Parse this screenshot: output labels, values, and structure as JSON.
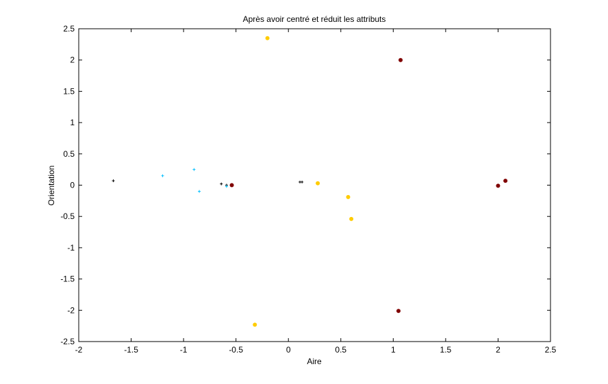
{
  "chart_data": {
    "type": "scatter",
    "title": "Après avoir centré et réduit les attributs",
    "xlabel": "Aire",
    "ylabel": "Orientation",
    "xlim": [
      -2,
      2.5
    ],
    "ylim": [
      -2.5,
      2.5
    ],
    "grid": false,
    "xticks": [
      -2,
      -1.5,
      -1,
      -0.5,
      0,
      0.5,
      1,
      1.5,
      2,
      2.5
    ],
    "xtick_labels": [
      "-2",
      "-1.5",
      "-1",
      "-0.5",
      "0",
      "0.5",
      "1",
      "1.5",
      "2",
      "2.5"
    ],
    "yticks": [
      -2.5,
      -2,
      -1.5,
      -1,
      -0.5,
      0,
      0.5,
      1,
      1.5,
      2,
      2.5
    ],
    "ytick_labels": [
      "-2.5",
      "-2",
      "-1.5",
      "-1",
      "-0.5",
      "0",
      "0.5",
      "1",
      "1.5",
      "2",
      "2.5"
    ],
    "series": [
      {
        "name": "black plus",
        "marker": "plus",
        "color": "#000000",
        "points": [
          [
            -1.67,
            0.07
          ],
          [
            -0.64,
            0.02
          ],
          [
            -0.59,
            0.0
          ],
          [
            0.11,
            0.05
          ],
          [
            0.13,
            0.05
          ]
        ]
      },
      {
        "name": "cyan plus",
        "marker": "plus",
        "color": "#00bfff",
        "points": [
          [
            -1.2,
            0.15
          ],
          [
            -0.9,
            0.25
          ],
          [
            -0.85,
            -0.1
          ],
          [
            -0.59,
            -0.02
          ]
        ]
      },
      {
        "name": "yellow dot",
        "marker": "dot",
        "color": "#ffcc00",
        "points": [
          [
            -0.2,
            2.35
          ],
          [
            0.28,
            0.03
          ],
          [
            0.57,
            -0.19
          ],
          [
            0.6,
            -0.54
          ],
          [
            -0.32,
            -2.23
          ]
        ]
      },
      {
        "name": "dark red dot",
        "marker": "dot",
        "color": "#800000",
        "points": [
          [
            1.07,
            2.0
          ],
          [
            -0.54,
            0.0
          ],
          [
            2.0,
            -0.01
          ],
          [
            2.07,
            0.07
          ],
          [
            1.05,
            -2.01
          ]
        ]
      }
    ]
  }
}
